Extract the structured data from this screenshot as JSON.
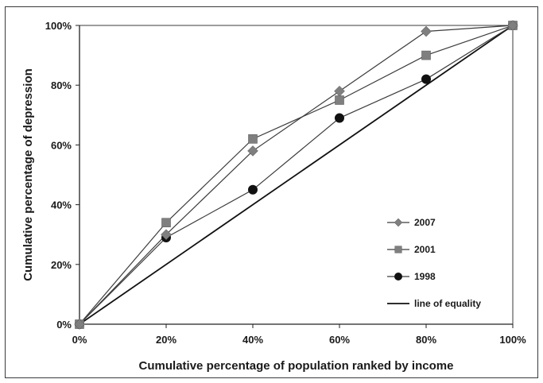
{
  "chart_data": {
    "type": "line",
    "title": "",
    "xlabel": "Cumulative percentage of population ranked by income",
    "ylabel": "Cumulative percentage of depression",
    "xlim": [
      0,
      100
    ],
    "ylim": [
      0,
      100
    ],
    "x_ticks": [
      "0%",
      "20%",
      "40%",
      "60%",
      "80%",
      "100%"
    ],
    "y_ticks": [
      "0%",
      "20%",
      "40%",
      "60%",
      "80%",
      "100%"
    ],
    "grid": false,
    "legend_position": "right",
    "series": [
      {
        "name": "2007",
        "marker": "diamond",
        "color": "#7f7f7f",
        "x": [
          0,
          20,
          40,
          60,
          80,
          100
        ],
        "y": [
          0,
          30,
          58,
          78,
          98,
          100
        ]
      },
      {
        "name": "2001",
        "marker": "square",
        "color": "#7f7f7f",
        "x": [
          0,
          20,
          40,
          60,
          80,
          100
        ],
        "y": [
          0,
          34,
          62,
          75,
          90,
          100
        ]
      },
      {
        "name": "1998",
        "marker": "circle",
        "color": "#111111",
        "x": [
          0,
          20,
          40,
          60,
          80,
          100
        ],
        "y": [
          0,
          29,
          45,
          69,
          82,
          100
        ]
      },
      {
        "name": "line of equality",
        "marker": "none",
        "color": "#111111",
        "x": [
          0,
          100
        ],
        "y": [
          0,
          100
        ]
      }
    ]
  }
}
